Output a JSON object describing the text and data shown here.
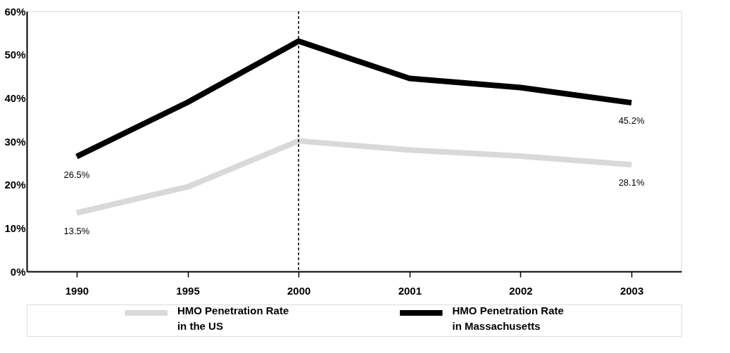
{
  "chart_data": {
    "type": "line",
    "categories": [
      "1990",
      "1995",
      "2000",
      "2001",
      "2002",
      "2003"
    ],
    "series": [
      {
        "name": "HMO Penetration Rate\nin the US",
        "color": "#d9d9d9",
        "values": [
          13.5,
          19.5,
          30.1,
          28.0,
          26.6,
          24.6
        ],
        "value_labels": [
          "13.5%",
          null,
          null,
          null,
          null,
          null
        ]
      },
      {
        "name": "HMO Penetration Rate\nin Massachusetts",
        "color": "#000000",
        "values": [
          26.5,
          39.0,
          53.1,
          44.5,
          42.4,
          38.9
        ],
        "value_labels": [
          "26.5%",
          null,
          null,
          null,
          null,
          null
        ]
      }
    ],
    "annotations": [
      {
        "text": "28.1%",
        "x": "2003",
        "y": 24.6
      },
      {
        "text": "45.2%",
        "x": "2003",
        "y": 38.9
      }
    ],
    "ylim": [
      0,
      60
    ],
    "yticks": [
      {
        "value": 0,
        "label": "0%"
      },
      {
        "value": 10,
        "label": "10%"
      },
      {
        "value": 20,
        "label": "20%"
      },
      {
        "value": 30,
        "label": "30%"
      },
      {
        "value": 40,
        "label": "40%"
      },
      {
        "value": 50,
        "label": "50%"
      },
      {
        "value": 60,
        "label": "60%"
      }
    ],
    "ref_lines": [
      {
        "axis": "x",
        "value": "2000",
        "label": null,
        "color": "#000000",
        "line_style": "dashed"
      }
    ],
    "grid": false,
    "legend": "bottom",
    "marker": "none",
    "line_style": "solid"
  }
}
